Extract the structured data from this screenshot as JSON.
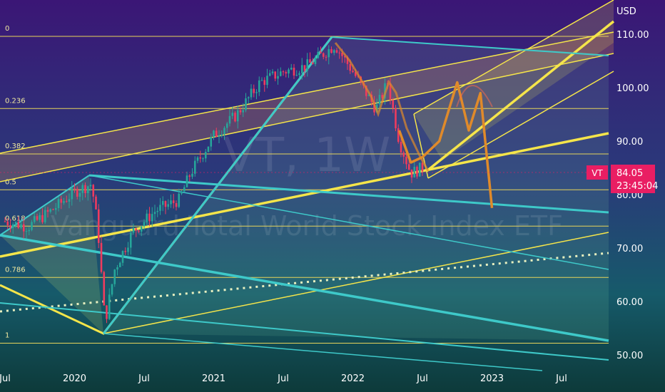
{
  "watermark": {
    "symbol_text": "VT, 1W",
    "name_text": "Vanguard Total World Stock Index ETF"
  },
  "price_axis": {
    "unit": "USD",
    "ticks": [
      "110.00",
      "100.00",
      "90.00",
      "80.00",
      "70.00",
      "60.00",
      "50.00"
    ]
  },
  "time_axis": {
    "ticks": [
      "Jul",
      "2020",
      "Jul",
      "2021",
      "Jul",
      "2022",
      "Jul",
      "2023",
      "Jul"
    ]
  },
  "price_badge": {
    "symbol": "VT",
    "price": "84.05",
    "countdown": "23:45:04"
  },
  "fib_levels": [
    "0",
    "0.236",
    "0.382",
    "0.5",
    "0.618",
    "0.786",
    "1"
  ],
  "colors": {
    "background_top": "#3a1a7a",
    "background_bottom": "#0e3a3a",
    "fib_line": "#e6d45a",
    "up_candle": "#26a69a",
    "down_candle": "#ef3b5e",
    "channel_yellow": "#f5e54a",
    "teal_line": "#3ec9c9",
    "projection": "#e08a2a",
    "badge": "#e91e63"
  },
  "chart_data": {
    "type": "candlestick",
    "timeframe": "1W",
    "y_unit": "USD",
    "ylim": [
      48,
      117
    ],
    "x_ticks": [
      "Jul",
      "2020",
      "Jul",
      "2021",
      "Jul",
      "2022",
      "Jul",
      "2023",
      "Jul"
    ],
    "y_ticks": [
      110,
      100,
      90,
      80,
      70,
      60,
      50
    ],
    "fib_retracement": [
      {
        "level": "0",
        "price": 109.6
      },
      {
        "level": "0.236",
        "price": 96.1
      },
      {
        "level": "0.382",
        "price": 87.6
      },
      {
        "level": "0.5",
        "price": 80.9
      },
      {
        "level": "0.618",
        "price": 74.1
      },
      {
        "level": "0.786",
        "price": 64.5
      },
      {
        "level": "1",
        "price": 52.2
      }
    ],
    "last_price": 84.05,
    "price_path": [
      [
        "2019-07",
        75.0
      ],
      [
        "2019-09",
        74.0
      ],
      [
        "2019-11",
        77.0
      ],
      [
        "2020-01",
        80.5
      ],
      [
        "2020-02-15",
        82.0
      ],
      [
        "2020-03-01",
        74.0
      ],
      [
        "2020-03-20",
        56.0
      ],
      [
        "2020-04-15",
        66.0
      ],
      [
        "2020-06",
        73.0
      ],
      [
        "2020-08",
        77.0
      ],
      [
        "2020-10",
        79.0
      ],
      [
        "2020-11",
        84.0
      ],
      [
        "2021-01",
        91.0
      ],
      [
        "2021-03",
        95.0
      ],
      [
        "2021-05",
        101.0
      ],
      [
        "2021-07",
        103.0
      ],
      [
        "2021-09",
        104.0
      ],
      [
        "2021-11-15",
        108.0
      ],
      [
        "2022-01",
        103.0
      ],
      [
        "2022-03",
        96.0
      ],
      [
        "2022-04",
        101.0
      ],
      [
        "2022-05",
        90.0
      ],
      [
        "2022-06",
        84.0
      ],
      [
        "2022-07",
        85.0
      ]
    ],
    "projection_path": [
      [
        "2022-05-01",
        92.0
      ],
      [
        "2022-06-01",
        86.0
      ],
      [
        "2022-07-01",
        87.0
      ],
      [
        "2022-08-15",
        90.0
      ],
      [
        "2022-10-01",
        101.0
      ],
      [
        "2022-11-01",
        92.0
      ],
      [
        "2022-12-01",
        99.0
      ],
      [
        "2023-01-01",
        77.5
      ]
    ]
  }
}
